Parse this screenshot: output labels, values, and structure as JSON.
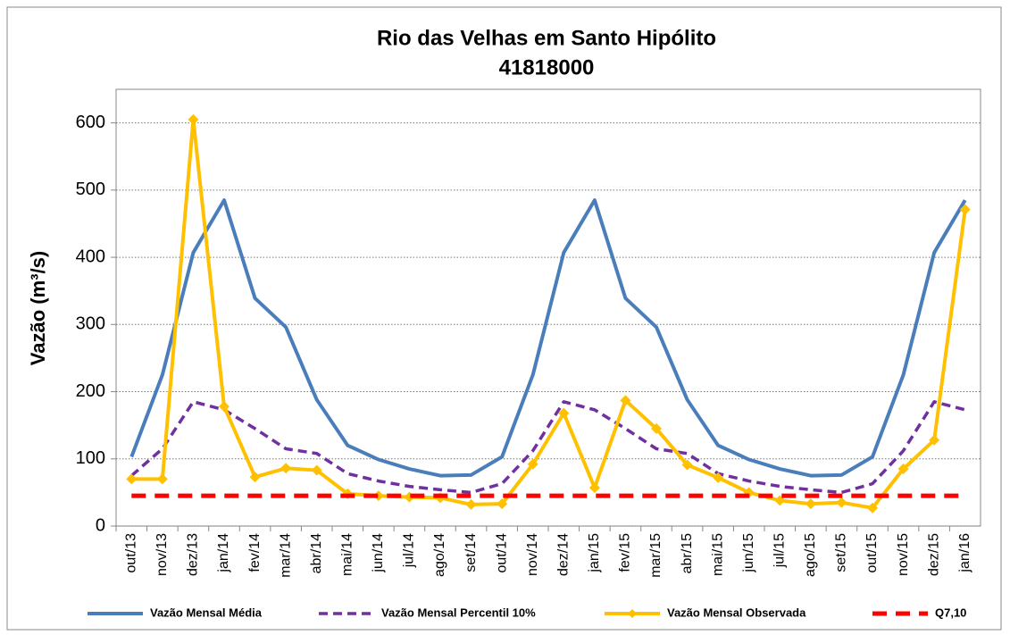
{
  "chart_data": {
    "type": "line",
    "title": "Rio das Velhas em Santo Hipólito",
    "subtitle": "41818000",
    "y_label": "Vazão (m³/s)",
    "categories": [
      "out/13",
      "nov/13",
      "dez/13",
      "jan/14",
      "fev/14",
      "mar/14",
      "abr/14",
      "mai/14",
      "jun/14",
      "jul/14",
      "ago/14",
      "set/14",
      "out/14",
      "nov/14",
      "dez/14",
      "jan/15",
      "fev/15",
      "mar/15",
      "abr/15",
      "mai/15",
      "jun/15",
      "jul/15",
      "ago/15",
      "set/15",
      "out/15",
      "nov/15",
      "dez/15",
      "jan/16"
    ],
    "series": [
      {
        "name": "Vazão Mensal Média",
        "color": "#4a7ebb",
        "style": "solid",
        "marker": "none",
        "values": [
          103,
          225,
          407,
          485,
          339,
          296,
          188,
          120,
          99,
          85,
          75,
          76,
          103,
          225,
          407,
          485,
          339,
          296,
          188,
          120,
          99,
          85,
          75,
          76,
          103,
          225,
          407,
          485
        ]
      },
      {
        "name": "Vazão Mensal Percentil 10%",
        "color": "#7030a0",
        "style": "dashed",
        "marker": "none",
        "values": [
          75,
          115,
          185,
          173,
          145,
          115,
          108,
          78,
          67,
          59,
          54,
          50,
          63,
          112,
          185,
          173,
          145,
          115,
          108,
          78,
          67,
          59,
          54,
          50,
          63,
          112,
          185,
          173
        ]
      },
      {
        "name": "Vazão Mensal Observada",
        "color": "#ffc000",
        "style": "solid",
        "marker": "diamond",
        "values": [
          70,
          70,
          605,
          178,
          73,
          86,
          83,
          48,
          45,
          43,
          42,
          32,
          33,
          92,
          168,
          57,
          187,
          145,
          91,
          72,
          50,
          38,
          33,
          35,
          27,
          85,
          128,
          471
        ]
      },
      {
        "name": "Q7,10",
        "color": "#ff0000",
        "style": "bold-dashed",
        "marker": "none",
        "values": [
          45,
          45,
          45,
          45,
          45,
          45,
          45,
          45,
          45,
          45,
          45,
          45,
          45,
          45,
          45,
          45,
          45,
          45,
          45,
          45,
          45,
          45,
          45,
          45,
          45,
          45,
          45,
          45
        ]
      }
    ],
    "ylim": [
      0,
      650
    ],
    "yticks": [
      0,
      100,
      200,
      300,
      400,
      500,
      600
    ],
    "grid": true,
    "legend": "bottom"
  }
}
